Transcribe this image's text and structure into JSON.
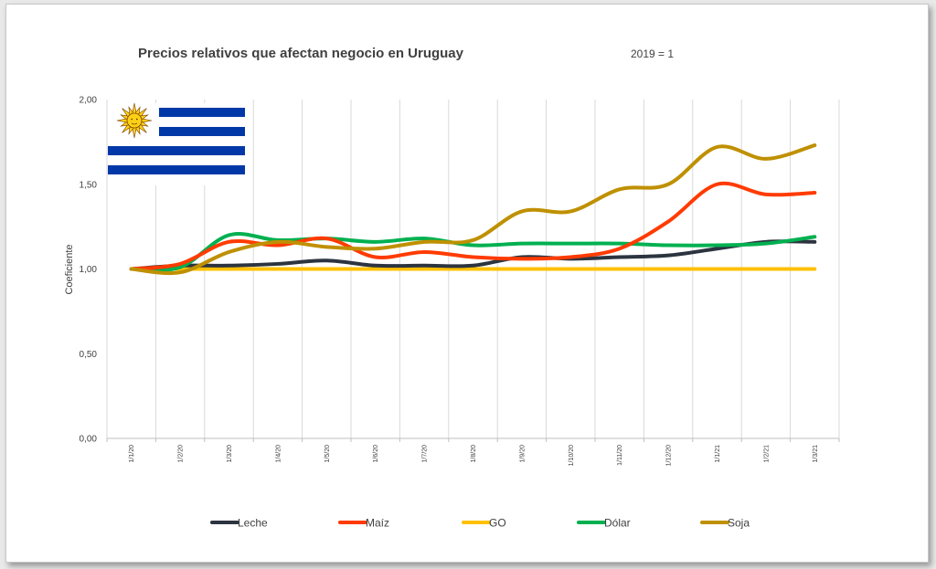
{
  "chart_data": {
    "type": "line",
    "title": "Precios relativos que afectan negocio en Uruguay",
    "subtitle": "2019 = 1",
    "ylabel": "Coeficiente",
    "xlabel": "",
    "ylim": [
      0,
      2
    ],
    "yticks": [
      "0,00",
      "0,50",
      "1,00",
      "1,50",
      "2,00"
    ],
    "ytick_values": [
      0,
      0.5,
      1,
      1.5,
      2
    ],
    "categories": [
      "1/1/20",
      "1/2/20",
      "1/3/20",
      "1/4/20",
      "1/5/20",
      "1/6/20",
      "1/7/20",
      "1/8/20",
      "1/9/20",
      "1/10/20",
      "1/11/20",
      "1/12/20",
      "1/1/21",
      "1/2/21",
      "1/3/21"
    ],
    "grid": "vertical",
    "legend": "bottom",
    "series": [
      {
        "name": "Leche",
        "color": "#2c3440",
        "values": [
          1.0,
          1.02,
          1.02,
          1.03,
          1.05,
          1.02,
          1.02,
          1.02,
          1.07,
          1.06,
          1.07,
          1.08,
          1.12,
          1.16,
          1.16
        ]
      },
      {
        "name": "Maíz",
        "color": "#ff3b00",
        "values": [
          1.0,
          1.03,
          1.16,
          1.14,
          1.18,
          1.07,
          1.1,
          1.07,
          1.06,
          1.07,
          1.12,
          1.28,
          1.5,
          1.44,
          1.45
        ]
      },
      {
        "name": "GO",
        "color": "#ffc000",
        "values": [
          1.0,
          1.0,
          1.0,
          1.0,
          1.0,
          1.0,
          1.0,
          1.0,
          1.0,
          1.0,
          1.0,
          1.0,
          1.0,
          1.0,
          1.0
        ]
      },
      {
        "name": "Dólar",
        "color": "#00b050",
        "values": [
          1.0,
          1.01,
          1.2,
          1.17,
          1.18,
          1.16,
          1.18,
          1.14,
          1.15,
          1.15,
          1.15,
          1.14,
          1.14,
          1.15,
          1.19
        ]
      },
      {
        "name": "Soja",
        "color": "#bf9000",
        "values": [
          1.0,
          0.98,
          1.1,
          1.16,
          1.13,
          1.12,
          1.16,
          1.17,
          1.34,
          1.34,
          1.47,
          1.5,
          1.72,
          1.65,
          1.73
        ]
      }
    ]
  },
  "flag": {
    "colors": {
      "blue": "#0038a8",
      "sun": "#fcd116",
      "sun_outline": "#7b3f00"
    }
  },
  "colors": {
    "grid": "#d9d9d9",
    "axis": "#bfbfbf",
    "text": "#404040"
  }
}
